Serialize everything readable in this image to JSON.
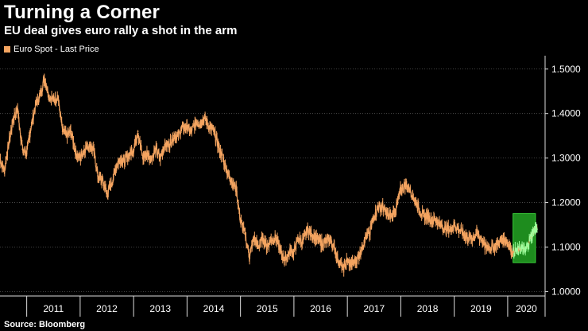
{
  "header": {
    "title": "Turning a Corner",
    "subtitle": "EU deal gives euro rally a shot in the arm"
  },
  "footer": {
    "source": "Source: Bloomberg"
  },
  "colors": {
    "series": "#f4a460",
    "highlight_fill": "#1e8c1e",
    "highlight_border": "#39d039",
    "highlight_series": "#9eff9e"
  },
  "chart_data": {
    "type": "line",
    "title": "Turning a Corner",
    "xlabel": "",
    "ylabel": "",
    "series": [
      {
        "name": "Euro Spot - Last Price",
        "x": [
          2010.5,
          2010.58,
          2010.66,
          2010.75,
          2010.83,
          2010.92,
          2011.0,
          2011.08,
          2011.17,
          2011.25,
          2011.33,
          2011.42,
          2011.5,
          2011.58,
          2011.67,
          2011.75,
          2011.83,
          2011.92,
          2012.0,
          2012.08,
          2012.17,
          2012.25,
          2012.33,
          2012.42,
          2012.5,
          2012.58,
          2012.67,
          2012.75,
          2012.83,
          2012.92,
          2013.0,
          2013.08,
          2013.17,
          2013.25,
          2013.33,
          2013.42,
          2013.5,
          2013.58,
          2013.67,
          2013.75,
          2013.83,
          2013.92,
          2014.0,
          2014.08,
          2014.17,
          2014.25,
          2014.33,
          2014.42,
          2014.5,
          2014.58,
          2014.67,
          2014.75,
          2014.83,
          2014.92,
          2015.0,
          2015.08,
          2015.17,
          2015.25,
          2015.33,
          2015.42,
          2015.5,
          2015.58,
          2015.67,
          2015.75,
          2015.83,
          2015.92,
          2016.0,
          2016.08,
          2016.17,
          2016.25,
          2016.33,
          2016.42,
          2016.5,
          2016.58,
          2016.67,
          2016.75,
          2016.83,
          2016.92,
          2017.0,
          2017.08,
          2017.17,
          2017.25,
          2017.33,
          2017.42,
          2017.5,
          2017.58,
          2017.67,
          2017.75,
          2017.83,
          2017.92,
          2018.0,
          2018.08,
          2018.17,
          2018.25,
          2018.33,
          2018.42,
          2018.5,
          2018.58,
          2018.67,
          2018.75,
          2018.83,
          2018.92,
          2019.0,
          2019.08,
          2019.17,
          2019.25,
          2019.33,
          2019.42,
          2019.5,
          2019.58,
          2019.67,
          2019.75,
          2019.83,
          2019.92,
          2020.0,
          2020.08,
          2020.17,
          2020.25,
          2020.33,
          2020.42,
          2020.5,
          2020.55
        ],
        "values": [
          1.3,
          1.27,
          1.33,
          1.39,
          1.41,
          1.32,
          1.31,
          1.37,
          1.42,
          1.44,
          1.48,
          1.44,
          1.43,
          1.44,
          1.36,
          1.35,
          1.36,
          1.31,
          1.3,
          1.32,
          1.33,
          1.32,
          1.26,
          1.25,
          1.22,
          1.24,
          1.28,
          1.3,
          1.29,
          1.31,
          1.32,
          1.36,
          1.3,
          1.31,
          1.3,
          1.32,
          1.3,
          1.33,
          1.33,
          1.35,
          1.35,
          1.37,
          1.37,
          1.36,
          1.38,
          1.38,
          1.39,
          1.37,
          1.36,
          1.33,
          1.3,
          1.27,
          1.25,
          1.23,
          1.16,
          1.13,
          1.08,
          1.12,
          1.1,
          1.12,
          1.1,
          1.12,
          1.12,
          1.09,
          1.07,
          1.09,
          1.09,
          1.12,
          1.11,
          1.14,
          1.13,
          1.12,
          1.11,
          1.11,
          1.12,
          1.1,
          1.07,
          1.05,
          1.07,
          1.06,
          1.07,
          1.09,
          1.12,
          1.13,
          1.17,
          1.19,
          1.19,
          1.17,
          1.17,
          1.19,
          1.23,
          1.24,
          1.23,
          1.21,
          1.19,
          1.17,
          1.17,
          1.16,
          1.16,
          1.15,
          1.14,
          1.14,
          1.15,
          1.14,
          1.13,
          1.12,
          1.12,
          1.13,
          1.12,
          1.1,
          1.1,
          1.1,
          1.11,
          1.12,
          1.11,
          1.09,
          1.09,
          1.1,
          1.09,
          1.12,
          1.14,
          1.14
        ]
      }
    ],
    "y_ticks": [
      "1.5000",
      "1.4000",
      "1.3000",
      "1.2000",
      "1.1000",
      "1.0000"
    ],
    "y_tick_values": [
      1.5,
      1.4,
      1.3,
      1.2,
      1.1,
      1.0
    ],
    "x_tick_labels": [
      "2011",
      "2012",
      "2013",
      "2014",
      "2015",
      "2016",
      "2017",
      "2018",
      "2019",
      "2020"
    ],
    "x_tick_values": [
      2011,
      2012,
      2013,
      2014,
      2015,
      2016,
      2017,
      2018,
      2019,
      2020
    ],
    "xlim": [
      2010.5,
      2020.7
    ],
    "ylim": [
      0.99,
      1.53
    ],
    "highlight": {
      "x_start": 2020.1,
      "x_end": 2020.52,
      "y_low": 1.065,
      "y_high": 1.175
    },
    "legend": "top-left",
    "grid": true
  }
}
